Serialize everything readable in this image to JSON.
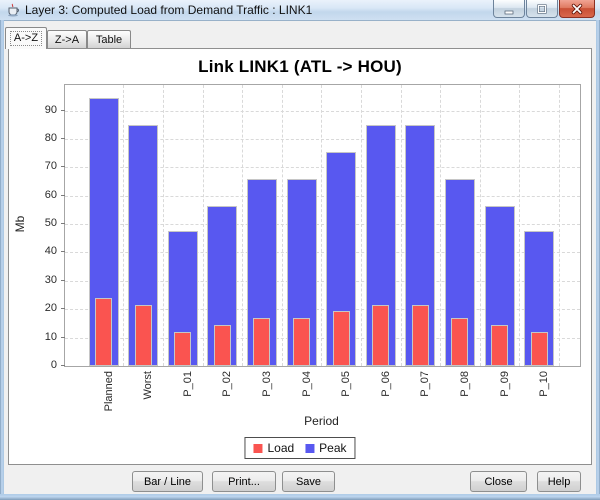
{
  "window": {
    "title": "Layer 3: Computed Load from Demand Traffic : LINK1"
  },
  "tabs": [
    {
      "label": "A->Z",
      "selected": true
    },
    {
      "label": "Z->A",
      "selected": false
    },
    {
      "label": "Table",
      "selected": false
    }
  ],
  "chart_data": {
    "type": "bar",
    "title": "Link LINK1 (ATL -> HOU)",
    "xlabel": "Period",
    "ylabel": "Mb",
    "categories": [
      "Planned",
      "Worst",
      "P_01",
      "P_02",
      "P_03",
      "P_04",
      "P_05",
      "P_06",
      "P_07",
      "P_08",
      "P_09",
      "P_10"
    ],
    "series": [
      {
        "name": "Load",
        "color": "#fa5450",
        "values": [
          24,
          21.5,
          12,
          14.5,
          17,
          17,
          19.5,
          21.5,
          21.5,
          17,
          14.5,
          12
        ]
      },
      {
        "name": "Peak",
        "color": "#5858f0",
        "values": [
          94.5,
          85,
          47.5,
          56.5,
          66,
          66,
          75.5,
          85,
          85,
          66,
          56.5,
          47.5
        ]
      }
    ],
    "ylim": [
      0,
      99
    ],
    "yticks": [
      0,
      10,
      20,
      30,
      40,
      50,
      60,
      70,
      80,
      90
    ],
    "grid": true,
    "legend_position": "bottom",
    "legend_labels": [
      "Load",
      "Peak"
    ]
  },
  "buttons": {
    "bar_line": "Bar / Line",
    "print": "Print...",
    "save": "Save",
    "close": "Close",
    "help": "Help"
  }
}
